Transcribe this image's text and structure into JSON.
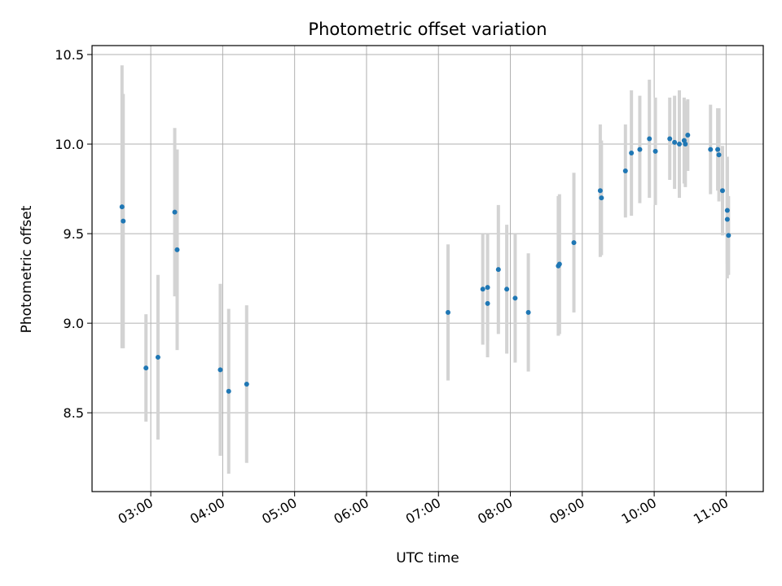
{
  "chart_data": {
    "type": "scatter",
    "title": "Photometric offset variation",
    "xlabel": "UTC time",
    "ylabel": "Photometric offset",
    "x_unit": "UTC time (HH:MM)",
    "xlim": [
      "02:11",
      "11:31"
    ],
    "ylim": [
      8.06,
      10.55
    ],
    "x_ticks": [
      "03:00",
      "04:00",
      "05:00",
      "06:00",
      "07:00",
      "08:00",
      "09:00",
      "10:00",
      "11:00"
    ],
    "y_ticks": [
      "8.5",
      "9.0",
      "9.5",
      "10.0",
      "10.5"
    ],
    "grid": true,
    "legend": "none",
    "marker_color": "#1f77b4",
    "errorbar_color": "#d3d3d3",
    "points": [
      {
        "t": "02:36",
        "y": 9.65,
        "err": 0.79
      },
      {
        "t": "02:37",
        "y": 9.57,
        "err": 0.71
      },
      {
        "t": "02:56",
        "y": 8.75,
        "err": 0.3
      },
      {
        "t": "03:06",
        "y": 8.81,
        "err": 0.46
      },
      {
        "t": "03:20",
        "y": 9.62,
        "err": 0.47
      },
      {
        "t": "03:22",
        "y": 9.41,
        "err": 0.56
      },
      {
        "t": "03:58",
        "y": 8.74,
        "err": 0.48
      },
      {
        "t": "04:05",
        "y": 8.62,
        "err": 0.46
      },
      {
        "t": "04:20",
        "y": 8.66,
        "err": 0.44
      },
      {
        "t": "07:08",
        "y": 9.06,
        "err": 0.38
      },
      {
        "t": "07:37",
        "y": 9.19,
        "err": 0.31
      },
      {
        "t": "07:41",
        "y": 9.11,
        "err": 0.3
      },
      {
        "t": "07:41",
        "y": 9.2,
        "err": 0.3
      },
      {
        "t": "07:50",
        "y": 9.3,
        "err": 0.36
      },
      {
        "t": "07:57",
        "y": 9.19,
        "err": 0.36
      },
      {
        "t": "08:04",
        "y": 9.14,
        "err": 0.36
      },
      {
        "t": "08:15",
        "y": 9.06,
        "err": 0.33
      },
      {
        "t": "08:40",
        "y": 9.32,
        "err": 0.39
      },
      {
        "t": "08:41",
        "y": 9.33,
        "err": 0.39
      },
      {
        "t": "08:53",
        "y": 9.45,
        "err": 0.39
      },
      {
        "t": "09:15",
        "y": 9.74,
        "err": 0.37
      },
      {
        "t": "09:16",
        "y": 9.7,
        "err": 0.32
      },
      {
        "t": "09:36",
        "y": 9.85,
        "err": 0.26
      },
      {
        "t": "09:41",
        "y": 9.95,
        "err": 0.35
      },
      {
        "t": "09:48",
        "y": 9.97,
        "err": 0.3
      },
      {
        "t": "09:56",
        "y": 10.03,
        "err": 0.33
      },
      {
        "t": "10:01",
        "y": 9.96,
        "err": 0.3
      },
      {
        "t": "10:13",
        "y": 10.03,
        "err": 0.23
      },
      {
        "t": "10:17",
        "y": 10.01,
        "err": 0.26
      },
      {
        "t": "10:21",
        "y": 10.0,
        "err": 0.3
      },
      {
        "t": "10:25",
        "y": 10.02,
        "err": 0.24
      },
      {
        "t": "10:26",
        "y": 10.0,
        "err": 0.24
      },
      {
        "t": "10:28",
        "y": 10.05,
        "err": 0.2
      },
      {
        "t": "10:47",
        "y": 9.97,
        "err": 0.25
      },
      {
        "t": "10:53",
        "y": 9.97,
        "err": 0.23
      },
      {
        "t": "10:54",
        "y": 9.94,
        "err": 0.26
      },
      {
        "t": "10:57",
        "y": 9.74,
        "err": 0.25
      },
      {
        "t": "11:01",
        "y": 9.63,
        "err": 0.3
      },
      {
        "t": "11:01",
        "y": 9.58,
        "err": 0.33
      },
      {
        "t": "11:02",
        "y": 9.49,
        "err": 0.22
      }
    ]
  }
}
